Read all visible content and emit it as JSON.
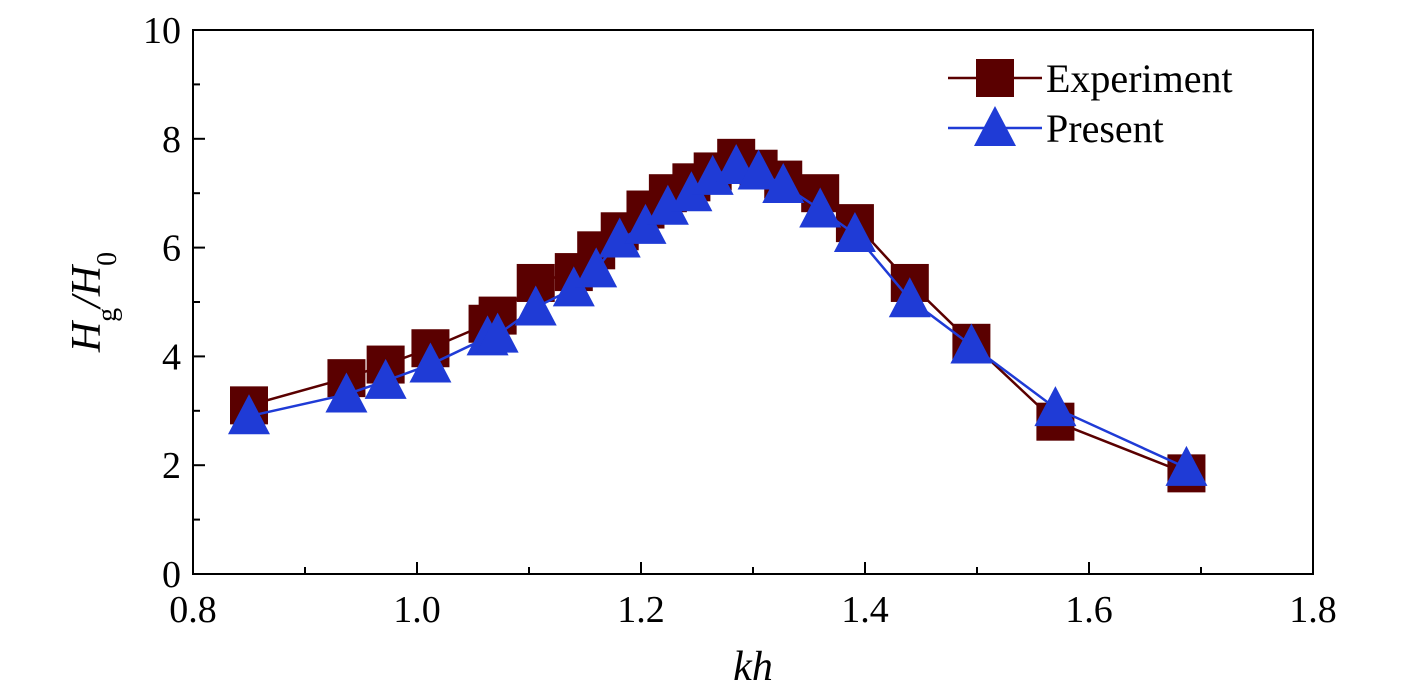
{
  "chart_data": {
    "type": "line",
    "xlabel": "kh",
    "ylabel": "H_g/H_0",
    "xlim": [
      0.8,
      1.8
    ],
    "ylim": [
      0,
      10
    ],
    "x_ticks": [
      "0.8",
      "1.0",
      "1.2",
      "1.4",
      "1.6",
      "1.8"
    ],
    "y_ticks": [
      "0",
      "2",
      "4",
      "6",
      "8",
      "10"
    ],
    "grid": false,
    "legend_position": "top-right",
    "series": [
      {
        "name": "Experiment",
        "marker": "square",
        "color": "#5a0000",
        "x": [
          0.85,
          0.937,
          0.972,
          1.012,
          1.063,
          1.072,
          1.106,
          1.14,
          1.16,
          1.181,
          1.204,
          1.224,
          1.245,
          1.264,
          1.285,
          1.305,
          1.327,
          1.36,
          1.391,
          1.44,
          1.495,
          1.57,
          1.687
        ],
        "y": [
          3.1,
          3.6,
          3.85,
          4.15,
          4.6,
          4.75,
          5.35,
          5.55,
          5.95,
          6.3,
          6.7,
          7.0,
          7.2,
          7.4,
          7.65,
          7.45,
          7.25,
          7.0,
          6.45,
          5.35,
          4.25,
          2.8,
          1.85
        ]
      },
      {
        "name": "Present",
        "marker": "triangle",
        "color": "#1f3bd6",
        "x": [
          0.85,
          0.937,
          0.972,
          1.012,
          1.063,
          1.072,
          1.106,
          1.14,
          1.16,
          1.181,
          1.204,
          1.224,
          1.245,
          1.264,
          1.285,
          1.305,
          1.327,
          1.36,
          1.391,
          1.44,
          1.495,
          1.57,
          1.687
        ],
        "y": [
          2.9,
          3.3,
          3.55,
          3.85,
          4.35,
          4.4,
          4.9,
          5.25,
          5.6,
          6.15,
          6.4,
          6.75,
          7.0,
          7.3,
          7.5,
          7.4,
          7.15,
          6.7,
          6.25,
          5.05,
          4.2,
          3.05,
          1.95
        ]
      }
    ]
  }
}
